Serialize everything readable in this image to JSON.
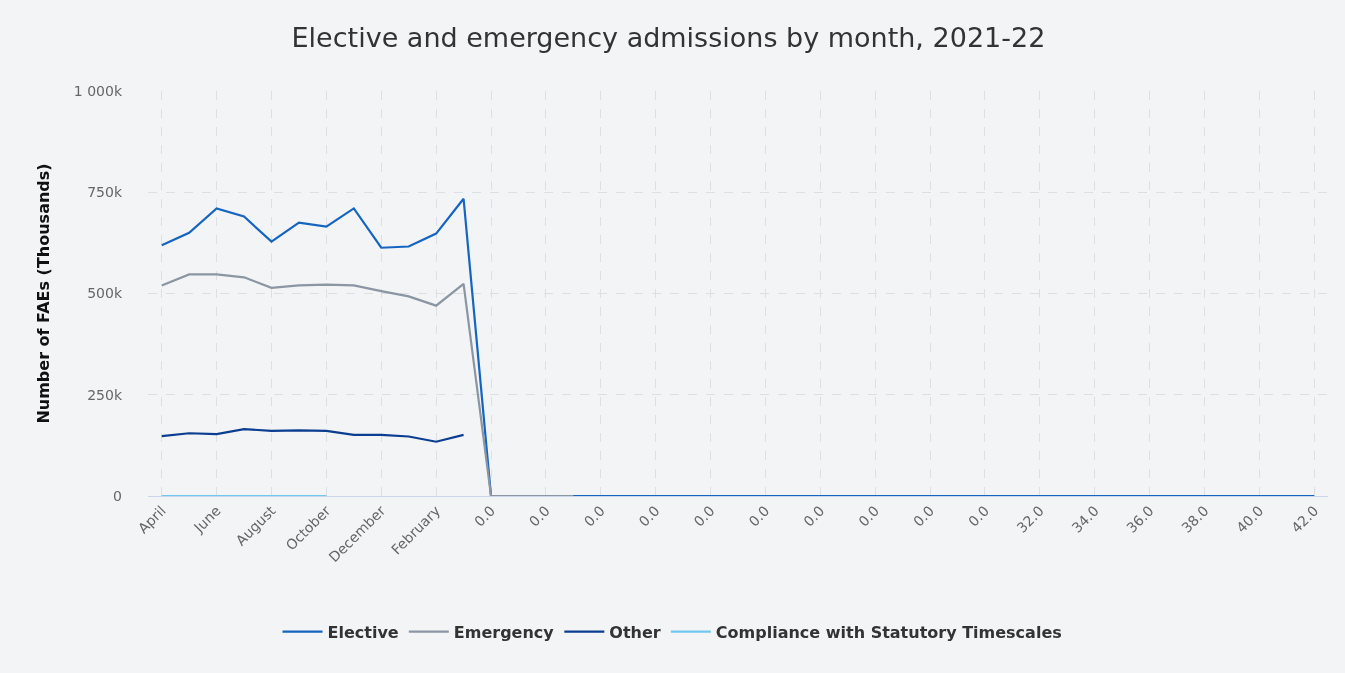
{
  "chart_data": {
    "type": "line",
    "title": "Elective and emergency admissions by month, 2021-22",
    "ylabel": "Number of FAEs (Thousands)",
    "categories": [
      "April",
      null,
      "June",
      null,
      "August",
      null,
      "October",
      null,
      "December",
      null,
      "February",
      null,
      "0.0",
      null,
      "0.0",
      null,
      "0.0",
      null,
      "0.0",
      null,
      "0.0",
      null,
      "0.0",
      null,
      "0.0",
      null,
      "0.0",
      null,
      "0.0",
      null,
      "0.0",
      null,
      "32.0",
      null,
      "34.0",
      null,
      "36.0",
      null,
      "38.0",
      null,
      "40.0",
      null,
      "42.0"
    ],
    "series": [
      {
        "name": "Elective",
        "color": "#1565c0",
        "values": [
          619000,
          650000,
          710000,
          690000,
          628000,
          675000,
          665000,
          710000,
          613000,
          616000,
          648000,
          734000,
          0,
          0,
          0,
          0,
          0,
          0,
          0,
          0,
          0,
          0,
          0,
          0,
          0,
          0,
          0,
          0,
          0,
          0,
          0,
          0,
          0,
          0,
          0,
          0,
          0,
          0,
          0,
          0,
          0,
          0,
          0
        ]
      },
      {
        "name": "Emergency",
        "color": "#8a96a3",
        "values": [
          520000,
          547000,
          547000,
          540000,
          514000,
          520000,
          522000,
          520000,
          506000,
          493000,
          470000,
          524000,
          0,
          0,
          0,
          0,
          null,
          null,
          null,
          null,
          null,
          null,
          null,
          null,
          null,
          null,
          null,
          null,
          null,
          null,
          null,
          null,
          null,
          null,
          null,
          null,
          null,
          null,
          null,
          null,
          null,
          null,
          null
        ]
      },
      {
        "name": "Other",
        "color": "#0b3d91",
        "values": [
          148000,
          155000,
          153000,
          165000,
          161000,
          162000,
          161000,
          151000,
          151000,
          147000,
          134000,
          151000,
          null,
          null,
          null,
          null,
          null,
          null,
          null,
          null,
          null,
          null,
          null,
          null,
          null,
          null,
          null,
          null,
          null,
          null,
          null,
          null,
          null,
          null,
          null,
          null,
          null,
          null,
          null,
          null,
          null,
          null,
          null
        ]
      },
      {
        "name": "Compliance with Statutory Timescales",
        "color": "#70c8ee",
        "values": [
          0,
          0,
          0,
          0,
          0,
          0,
          0,
          null,
          null,
          null,
          null,
          null,
          null,
          null,
          null,
          null,
          null,
          null,
          null,
          null,
          null,
          null,
          null,
          null,
          null,
          null,
          null,
          null,
          null,
          null,
          null,
          null,
          null,
          null,
          null,
          null,
          null,
          null,
          null,
          null,
          null,
          null,
          null
        ]
      }
    ],
    "ylim": [
      0,
      1000000
    ],
    "yticks": [
      0,
      {
        "value": 250000,
        "label": "250k"
      },
      {
        "value": 500000,
        "label": "500k"
      },
      {
        "value": 750000,
        "label": "750k"
      },
      {
        "value": 1000000,
        "label": "1 000k"
      }
    ],
    "grid": true,
    "legend": "bottom",
    "line_style": "solid"
  }
}
